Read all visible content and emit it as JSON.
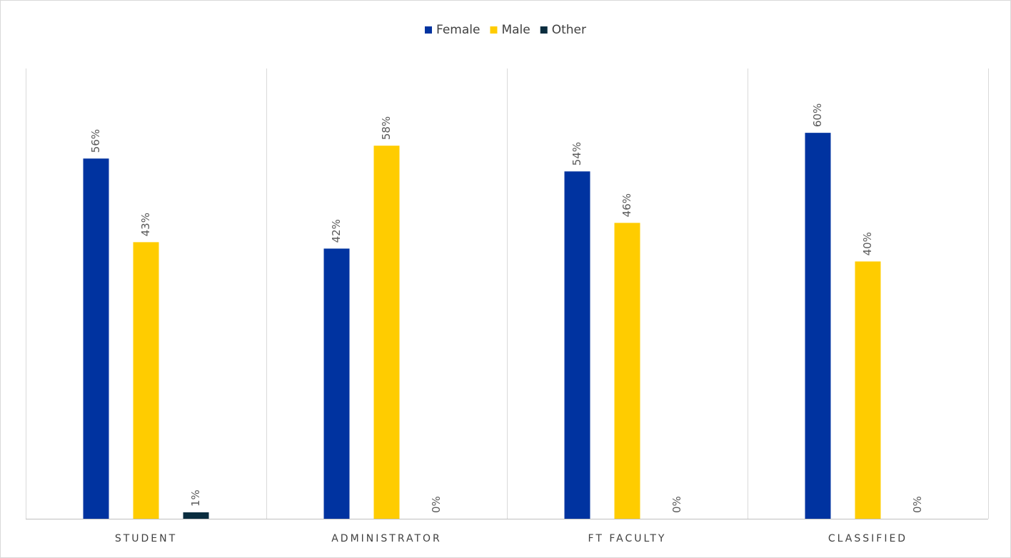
{
  "chart_data": {
    "type": "bar",
    "categories": [
      "STUDENT",
      "ADMINISTRATOR",
      "FT FACULTY",
      "CLASSIFIED"
    ],
    "series": [
      {
        "name": "Female",
        "color": "#0033a0",
        "values": [
          56,
          42,
          54,
          60
        ],
        "value_labels": [
          "56%",
          "42%",
          "54%",
          "60%"
        ]
      },
      {
        "name": "Male",
        "color": "#ffcc00",
        "values": [
          43,
          58,
          46,
          40
        ],
        "value_labels": [
          "43%",
          "58%",
          "46%",
          "40%"
        ]
      },
      {
        "name": "Other",
        "color": "#0a2d3f",
        "values": [
          1,
          0,
          0,
          0
        ],
        "value_labels": [
          "1%",
          "0%",
          "0%",
          "0%"
        ]
      }
    ],
    "ylim": [
      0,
      70
    ],
    "legend": "top"
  }
}
